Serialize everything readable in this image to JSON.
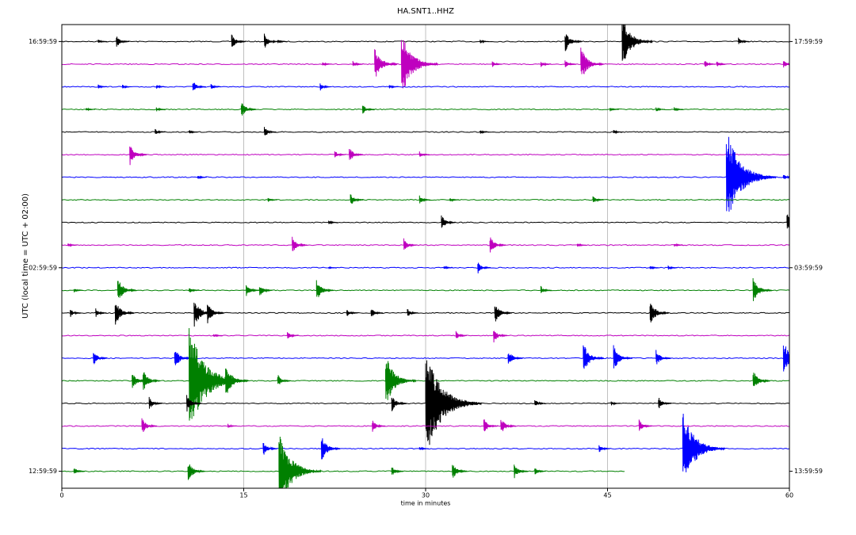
{
  "chart_data": {
    "type": "dayplot",
    "title": "HA.SNT1..HHZ",
    "xlabel": "time in minutes",
    "ylabel": "UTC (local time = UTC + 02:00)",
    "xlim": [
      0,
      60
    ],
    "xticks": [
      0,
      15,
      30,
      45,
      60
    ],
    "grid": true,
    "ylim": [
      19.75,
      -0.75
    ],
    "yticks": [
      {
        "value": 0,
        "label": "16:59:59"
      },
      {
        "value": 10,
        "label": "02:59:59"
      },
      {
        "value": 19,
        "label": "12:59:59"
      }
    ],
    "y2ticks": [
      {
        "value": 0,
        "label": "17:59:59"
      },
      {
        "value": 10,
        "label": "03:59:59"
      },
      {
        "value": 19,
        "label": "13:59:59"
      }
    ],
    "series": [
      {
        "color": "#000000",
        "events": [
          [
            3,
            0.1
          ],
          [
            4.5,
            0.3
          ],
          [
            14,
            0.35
          ],
          [
            16.7,
            0.35
          ],
          [
            17.8,
            0.1
          ],
          [
            34.5,
            0.1
          ],
          [
            41.5,
            0.5
          ],
          [
            46.2,
            1.2
          ],
          [
            55.8,
            0.2
          ]
        ]
      },
      {
        "color": "#bf00bf",
        "events": [
          [
            21.5,
            0.1
          ],
          [
            24,
            0.15
          ],
          [
            25.8,
            0.8
          ],
          [
            28,
            1.5
          ],
          [
            35.5,
            0.15
          ],
          [
            39.5,
            0.15
          ],
          [
            41.5,
            0.2
          ],
          [
            42.8,
            0.8
          ],
          [
            53,
            0.2
          ],
          [
            54,
            0.15
          ],
          [
            59.5,
            0.2
          ]
        ]
      },
      {
        "color": "#0000ff",
        "events": [
          [
            3,
            0.1
          ],
          [
            5,
            0.1
          ],
          [
            7.8,
            0.1
          ],
          [
            10.8,
            0.3
          ],
          [
            12.3,
            0.15
          ],
          [
            21.3,
            0.2
          ],
          [
            27,
            0.1
          ]
        ]
      },
      {
        "color": "#008000",
        "events": [
          [
            2,
            0.1
          ],
          [
            7.8,
            0.1
          ],
          [
            14.8,
            0.4
          ],
          [
            24.8,
            0.25
          ],
          [
            45.2,
            0.1
          ],
          [
            49,
            0.1
          ],
          [
            50.5,
            0.1
          ]
        ]
      },
      {
        "color": "#000000",
        "events": [
          [
            7.7,
            0.15
          ],
          [
            10.5,
            0.1
          ],
          [
            16.7,
            0.25
          ],
          [
            34.5,
            0.1
          ],
          [
            45.5,
            0.1
          ]
        ]
      },
      {
        "color": "#bf00bf",
        "events": [
          [
            5.6,
            0.5
          ],
          [
            22.5,
            0.2
          ],
          [
            23.7,
            0.35
          ],
          [
            29.5,
            0.15
          ]
        ]
      },
      {
        "color": "#0000ff",
        "events": [
          [
            11.2,
            0.1
          ],
          [
            54.8,
            2.2
          ],
          [
            59.5,
            0.15
          ]
        ]
      },
      {
        "color": "#008000",
        "events": [
          [
            17,
            0.1
          ],
          [
            23.8,
            0.3
          ],
          [
            29.5,
            0.2
          ],
          [
            32,
            0.1
          ],
          [
            43.8,
            0.2
          ]
        ]
      },
      {
        "color": "#000000",
        "events": [
          [
            22,
            0.1
          ],
          [
            31.3,
            0.35
          ],
          [
            59.8,
            0.45
          ]
        ]
      },
      {
        "color": "#bf00bf",
        "events": [
          [
            0.5,
            0.1
          ],
          [
            19,
            0.4
          ],
          [
            28.2,
            0.3
          ],
          [
            35.3,
            0.45
          ],
          [
            42.5,
            0.1
          ],
          [
            50.5,
            0.1
          ]
        ]
      },
      {
        "color": "#0000ff",
        "events": [
          [
            22,
            0.05
          ],
          [
            31.5,
            0.1
          ],
          [
            34.3,
            0.3
          ],
          [
            48.5,
            0.1
          ],
          [
            50,
            0.1
          ]
        ]
      },
      {
        "color": "#008000",
        "events": [
          [
            1,
            0.1
          ],
          [
            4.6,
            0.6
          ],
          [
            10.5,
            0.15
          ],
          [
            15.2,
            0.3
          ],
          [
            16.3,
            0.3
          ],
          [
            21,
            0.5
          ],
          [
            39.5,
            0.2
          ],
          [
            57,
            0.6
          ]
        ]
      },
      {
        "color": "#000000",
        "events": [
          [
            0.7,
            0.2
          ],
          [
            2.8,
            0.2
          ],
          [
            4.4,
            0.6
          ],
          [
            10.9,
            0.7
          ],
          [
            12,
            0.5
          ],
          [
            23.5,
            0.2
          ],
          [
            25.5,
            0.25
          ],
          [
            28.5,
            0.2
          ],
          [
            35.7,
            0.5
          ],
          [
            48.5,
            0.6
          ]
        ]
      },
      {
        "color": "#bf00bf",
        "events": [
          [
            12.5,
            0.1
          ],
          [
            18.6,
            0.2
          ],
          [
            32.5,
            0.2
          ],
          [
            35.6,
            0.35
          ]
        ]
      },
      {
        "color": "#0000ff",
        "events": [
          [
            2.6,
            0.35
          ],
          [
            9.3,
            0.5
          ],
          [
            36.8,
            0.4
          ],
          [
            43,
            0.7
          ],
          [
            45.5,
            0.6
          ],
          [
            49,
            0.4
          ],
          [
            59.5,
            0.8
          ]
        ]
      },
      {
        "color": "#008000",
        "events": [
          [
            5.8,
            0.4
          ],
          [
            6.7,
            0.5
          ],
          [
            10.5,
            2.5
          ],
          [
            13.5,
            0.8
          ],
          [
            17.8,
            0.3
          ],
          [
            26.7,
            1.2
          ],
          [
            57,
            0.5
          ]
        ]
      },
      {
        "color": "#000000",
        "events": [
          [
            7.2,
            0.3
          ],
          [
            10.3,
            0.4
          ],
          [
            27.2,
            0.4
          ],
          [
            30,
            2.5
          ],
          [
            39,
            0.2
          ],
          [
            45.3,
            0.1
          ],
          [
            49.2,
            0.3
          ]
        ]
      },
      {
        "color": "#bf00bf",
        "events": [
          [
            6.6,
            0.4
          ],
          [
            13.7,
            0.1
          ],
          [
            25.6,
            0.3
          ],
          [
            34.8,
            0.35
          ],
          [
            36.2,
            0.4
          ],
          [
            47.6,
            0.3
          ]
        ]
      },
      {
        "color": "#0000ff",
        "events": [
          [
            16.6,
            0.35
          ],
          [
            21.4,
            0.6
          ],
          [
            29.5,
            0.1
          ],
          [
            44.3,
            0.2
          ],
          [
            51.2,
            1.8
          ]
        ]
      },
      {
        "color": "#008000",
        "events": [
          [
            1,
            0.2
          ],
          [
            10.4,
            0.5
          ],
          [
            17.9,
            1.8
          ],
          [
            27.2,
            0.25
          ],
          [
            32.2,
            0.4
          ],
          [
            37.3,
            0.35
          ],
          [
            39,
            0.2
          ]
        ],
        "end": 46.5
      }
    ]
  }
}
